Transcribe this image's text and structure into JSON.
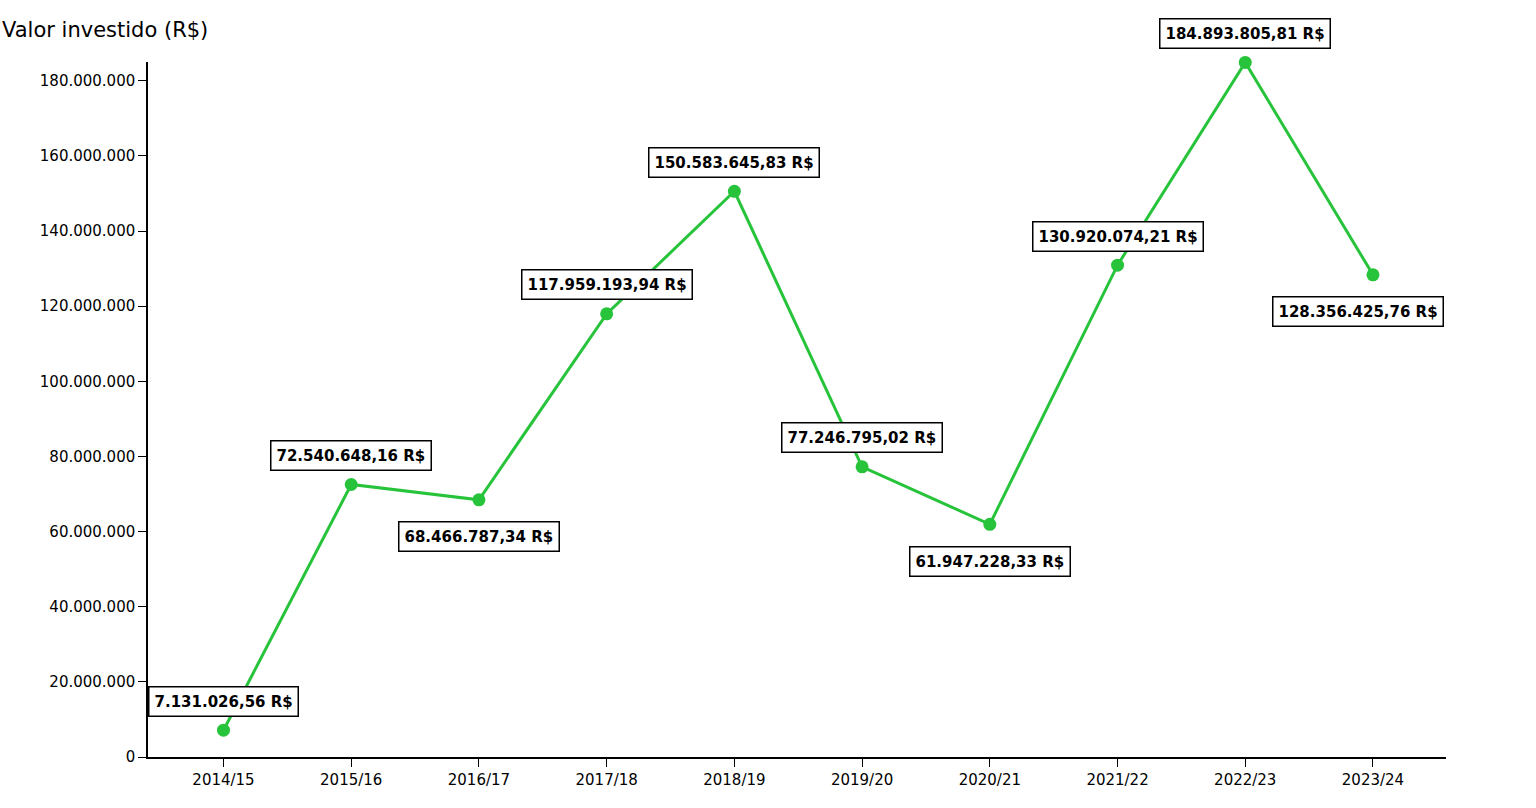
{
  "chart_data": {
    "type": "line",
    "ylabel": "Valor investido (R$)",
    "categories": [
      "2014/15",
      "2015/16",
      "2016/17",
      "2017/18",
      "2018/19",
      "2019/20",
      "2020/21",
      "2021/22",
      "2022/23",
      "2023/24"
    ],
    "values": [
      7131026.56,
      72540648.16,
      68466787.34,
      117959193.94,
      150583645.83,
      77246795.02,
      61947228.33,
      130920074.21,
      184893805.81,
      128356425.76
    ],
    "value_labels": [
      "7.131.026,56 R$",
      "72.540.648,16 R$",
      "68.466.787,34 R$",
      "117.959.193,94 R$",
      "150.583.645,83 R$",
      "77.246.795,02 R$",
      "61.947.228,33 R$",
      "130.920.074,21 R$",
      "184.893.805,81 R$",
      "128.356.425,76 R$"
    ],
    "color": "#27c43b",
    "marker": "circle",
    "line_style": "solid",
    "data_labels": true,
    "grid": false,
    "ylim": [
      0,
      185000000
    ],
    "yticks": [
      0,
      {
        "value": 20000000,
        "label": "20.000.000"
      },
      {
        "value": 40000000,
        "label": "40.000.000"
      },
      {
        "value": 60000000,
        "label": "60.000.000"
      },
      {
        "value": 80000000,
        "label": "80.000.000"
      },
      {
        "value": 100000000,
        "label": "100.000.000"
      },
      {
        "value": 120000000,
        "label": "120.000.000"
      },
      {
        "value": 140000000,
        "label": "140.000.000"
      },
      {
        "value": 160000000,
        "label": "160.000.000"
      },
      {
        "value": 180000000,
        "label": "180.000.000"
      }
    ]
  }
}
